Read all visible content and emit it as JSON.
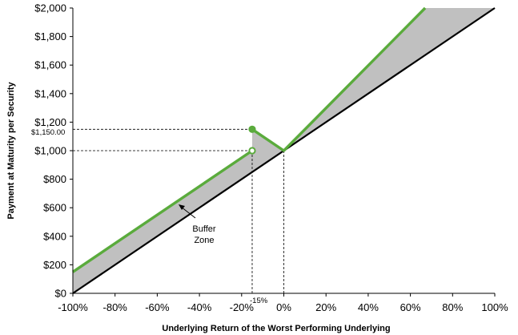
{
  "chart_data": {
    "type": "line",
    "xlabel": "Underlying Return of the Worst Performing Underlying",
    "ylabel": "Payment at Maturity per Security",
    "xlim": [
      -100,
      100
    ],
    "ylim": [
      0,
      2000
    ],
    "x_ticks": [
      -100,
      -80,
      -60,
      -40,
      -20,
      0,
      20,
      40,
      60,
      80,
      100
    ],
    "x_tick_labels": [
      "-100%",
      "-80%",
      "-60%",
      "-40%",
      "-20%",
      "0%",
      "20%",
      "40%",
      "60%",
      "80%",
      "100%"
    ],
    "y_ticks": [
      0,
      200,
      400,
      600,
      800,
      1000,
      1200,
      1400,
      1600,
      1800,
      2000
    ],
    "y_tick_labels": [
      "$0",
      "$200",
      "$400",
      "$600",
      "$800",
      "$1,000",
      "$1,200",
      "$1,400",
      "$1,600",
      "$1,800",
      "$2,000"
    ],
    "grid": false,
    "series": [
      {
        "color": "#000000",
        "points": [
          [
            -100,
            0
          ],
          [
            100,
            2000
          ]
        ]
      },
      {
        "color": "#5aab3c",
        "segments": [
          [
            [
              -100,
              150
            ],
            [
              -15,
              1000
            ]
          ],
          [
            [
              -15,
              1150
            ],
            [
              0,
              1000
            ],
            [
              67,
              2000
            ]
          ]
        ]
      }
    ],
    "shaded_area_color": "#c0c0c0",
    "markers": [
      {
        "x": -15,
        "y": 1000,
        "style": "open"
      },
      {
        "x": -15,
        "y": 1150,
        "style": "filled"
      }
    ],
    "reference_lines": {
      "horizontal": [
        1150,
        1000
      ],
      "vertical": [
        -15,
        0
      ]
    },
    "annotations": {
      "y_value_label": "$1,150.00",
      "x_value_label": "-15%",
      "buffer_label_line1": "Buffer",
      "buffer_label_line2": "Zone"
    }
  }
}
